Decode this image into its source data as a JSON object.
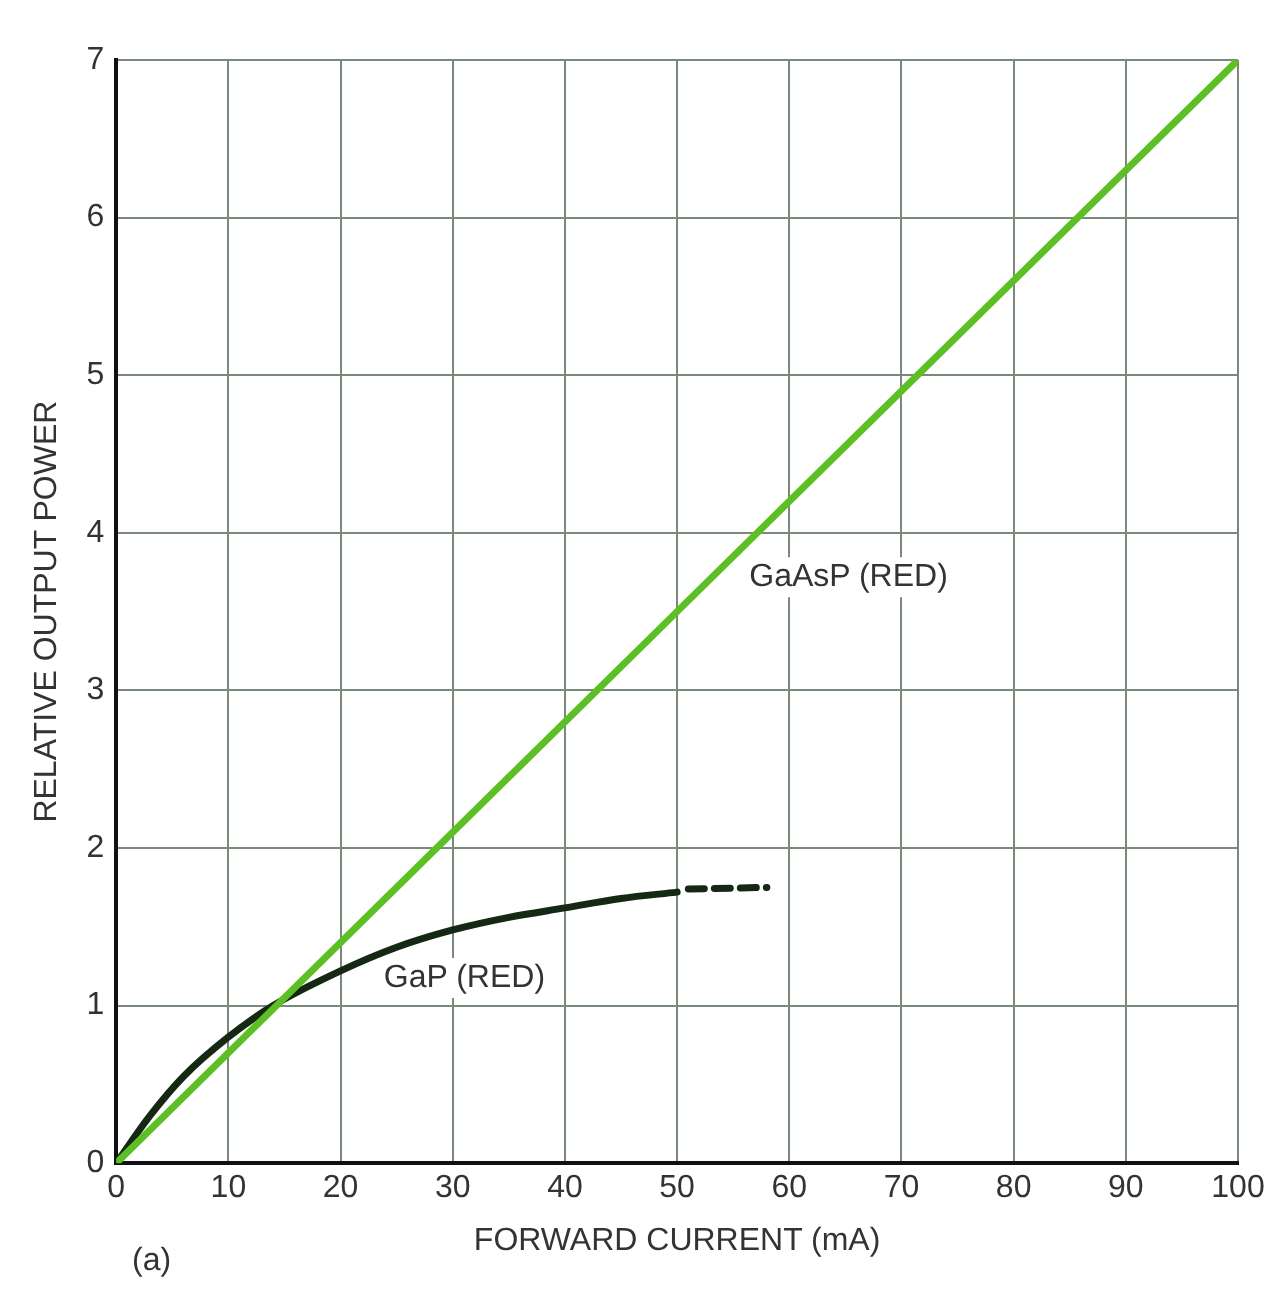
{
  "chart_data": {
    "type": "line",
    "xlabel": "FORWARD CURRENT (mA)",
    "ylabel": "RELATIVE OUTPUT POWER",
    "series": [
      {
        "name": "GaAsP (RED)",
        "color": "#5cbf24",
        "x": [
          0,
          100
        ],
        "values": [
          0,
          7
        ]
      },
      {
        "name": "GaP (RED)",
        "color": "#142814",
        "x": [
          0,
          3,
          6,
          10,
          14,
          20,
          25,
          30,
          35,
          40,
          45,
          50
        ],
        "values": [
          0,
          0.3,
          0.55,
          0.8,
          1.0,
          1.22,
          1.37,
          1.48,
          1.56,
          1.62,
          1.68,
          1.72
        ]
      },
      {
        "color": "#142814",
        "line_style": "dashed",
        "x": [
          51,
          58
        ],
        "values": [
          1.74,
          1.75
        ]
      }
    ],
    "xlim": [
      0,
      100
    ],
    "xticks": [
      0,
      10,
      20,
      30,
      40,
      50,
      60,
      70,
      80,
      90,
      100
    ],
    "ylim": [
      0,
      7
    ],
    "yticks": [
      0,
      1,
      2,
      3,
      4,
      5,
      6,
      7
    ],
    "grid": true,
    "legend": false,
    "marker": "none",
    "line_style": "solid",
    "annotations": [
      "(a)"
    ]
  }
}
